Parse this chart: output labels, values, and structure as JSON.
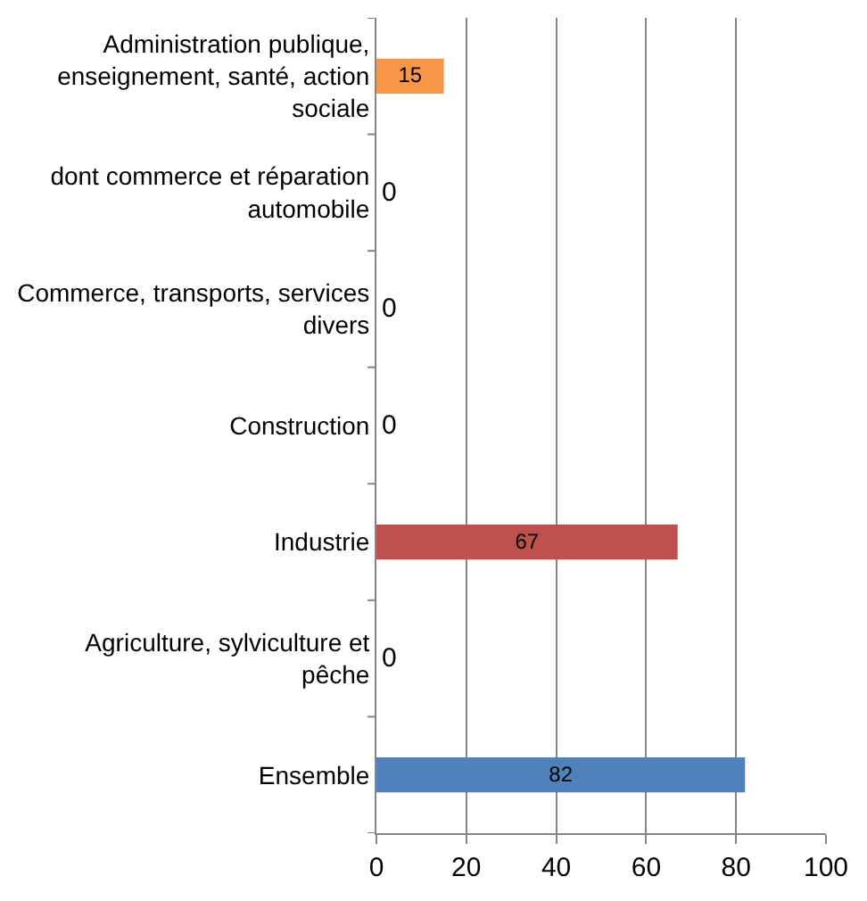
{
  "chart_data": {
    "type": "bar",
    "orientation": "horizontal",
    "categories": [
      "Administration publique, enseignement, santé, action sociale",
      "dont commerce et réparation automobile",
      "Commerce, transports, services divers",
      "Construction",
      "Industrie",
      "Agriculture, sylviculture et pêche",
      "Ensemble"
    ],
    "values": [
      15,
      0,
      0,
      0,
      67,
      0,
      82
    ],
    "colors": [
      "#f79646",
      "#4f81bd",
      "#4f81bd",
      "#4f81bd",
      "#c0504d",
      "#4f81bd",
      "#4f81bd"
    ],
    "xlim": [
      0,
      100
    ],
    "xticks": [
      0,
      20,
      40,
      60,
      80,
      100
    ],
    "grid": "x",
    "data_labels": true,
    "legend": false
  }
}
